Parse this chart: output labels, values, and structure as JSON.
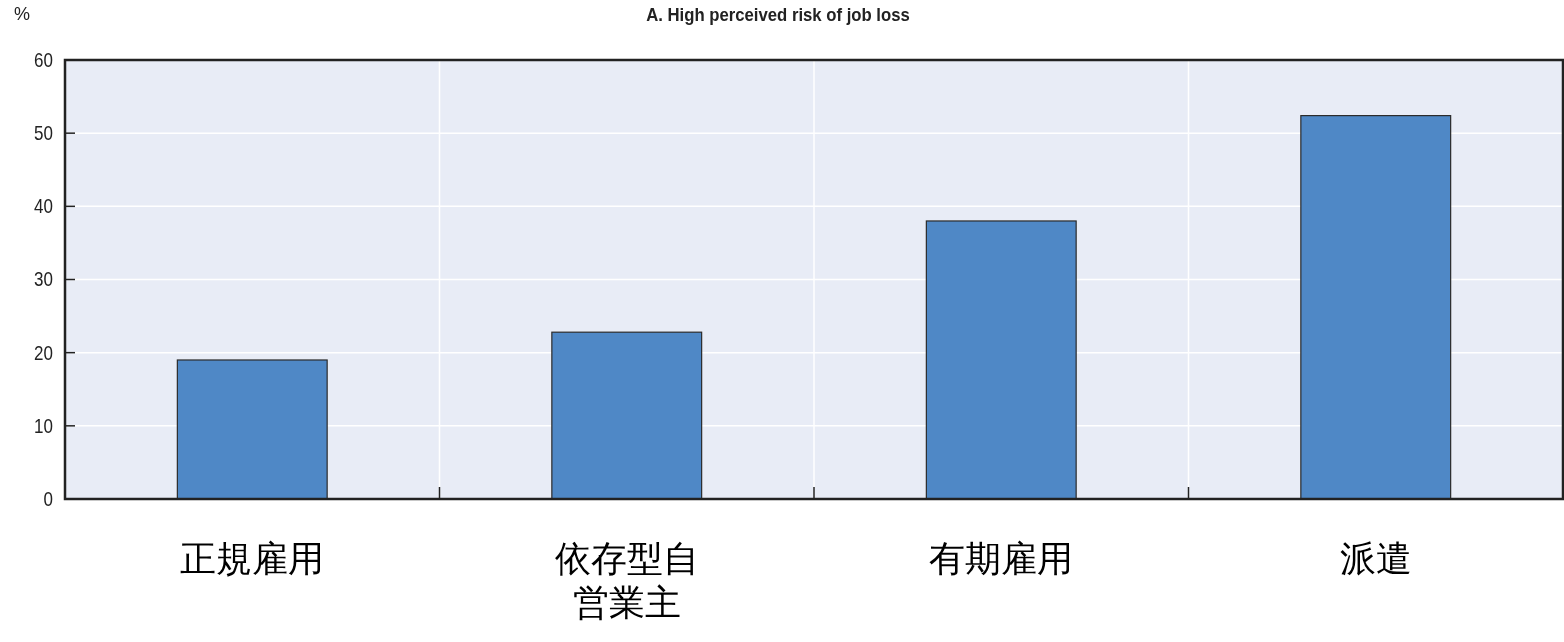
{
  "chart_data": {
    "type": "bar",
    "title": "A. High perceived risk of job loss",
    "ylabel": "%",
    "categories": [
      "正規雇用",
      "依存型自営業主",
      "有期雇用",
      "派遣"
    ],
    "values": [
      19.0,
      22.8,
      38.0,
      52.4
    ],
    "color": "#4f88c6",
    "ylim": [
      0,
      60
    ],
    "yticks": [
      0,
      10,
      20,
      30,
      40,
      50,
      60
    ],
    "grid": true
  }
}
